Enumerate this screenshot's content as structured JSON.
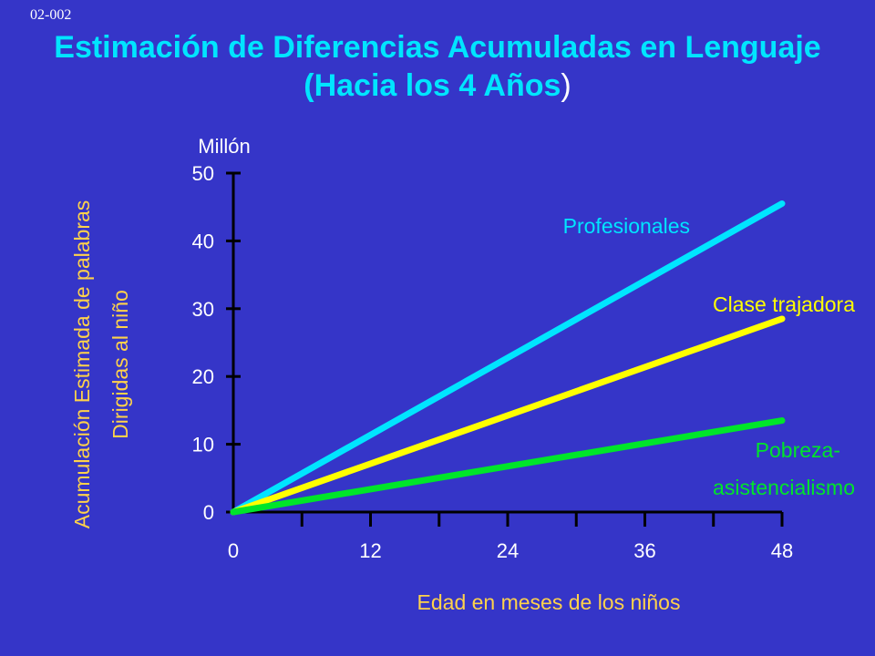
{
  "slide_code": "02-002",
  "title_line1": "Estimación de Diferencias Acumuladas en Lenguaje",
  "title_line2": "(Hacia los 4 Años",
  "title_close": ")",
  "chart_data": {
    "type": "line",
    "y_unit": "Millón",
    "xlabel": "Edad en meses de los niños",
    "ylabel_line1": "Acumulación Estimada de palabras",
    "ylabel_line2": "Dirigidas al niño",
    "xlim": [
      0,
      48
    ],
    "ylim": [
      0,
      50
    ],
    "xticks": [
      0,
      12,
      24,
      36,
      48
    ],
    "yticks": [
      0,
      10,
      20,
      30,
      40,
      50
    ],
    "grid": false,
    "legend": "inline labels",
    "series": [
      {
        "name": "Profesionales",
        "color": "#00e5ff",
        "x": [
          0,
          48
        ],
        "y": [
          0,
          45.5
        ]
      },
      {
        "name": "Clase trajadora",
        "color": "#ffff00",
        "x": [
          0,
          48
        ],
        "y": [
          0,
          28.5
        ]
      },
      {
        "name": "Pobreza-",
        "name_line2": "asistencialismo",
        "color": "#00e52a",
        "x": [
          0,
          48
        ],
        "y": [
          0,
          13.5
        ]
      }
    ]
  }
}
